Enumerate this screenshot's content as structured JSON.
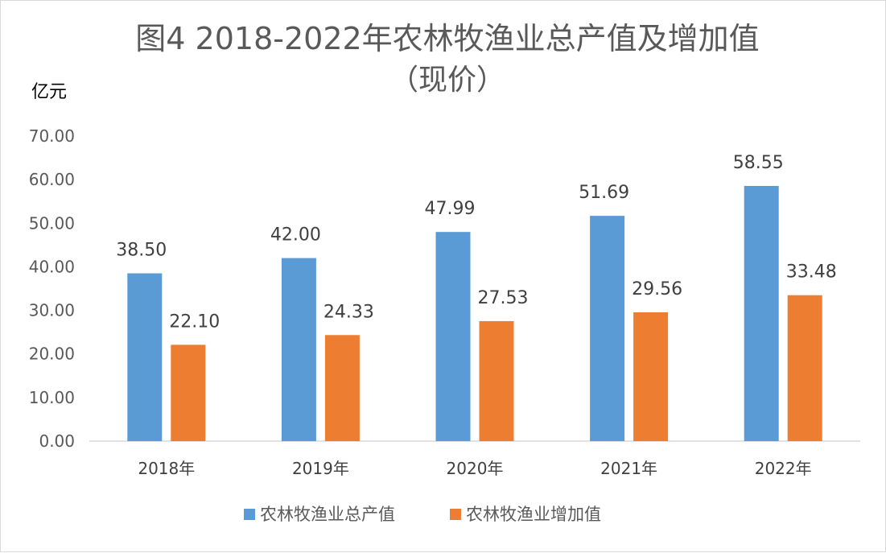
{
  "chart_data": {
    "type": "bar",
    "title": "图4 2018-2022年农林牧渔业总产值及增加值",
    "subtitle": "（现价）",
    "unit_label": "亿元",
    "categories": [
      "2018年",
      "2019年",
      "2020年",
      "2021年",
      "2022年"
    ],
    "series": [
      {
        "name": "农林牧渔业总产值",
        "color": "#5b9bd5",
        "values": [
          38.5,
          42.0,
          47.99,
          51.69,
          58.55
        ]
      },
      {
        "name": "农林牧渔业增加值",
        "color": "#ed7d31",
        "values": [
          22.1,
          24.33,
          27.53,
          29.56,
          33.48
        ]
      }
    ],
    "ylim": [
      0,
      70
    ],
    "yticks": [
      "0.00",
      "10.00",
      "20.00",
      "30.00",
      "40.00",
      "50.00",
      "60.00",
      "70.00"
    ],
    "grid": false,
    "legend_position": "bottom",
    "data_labels": true
  }
}
